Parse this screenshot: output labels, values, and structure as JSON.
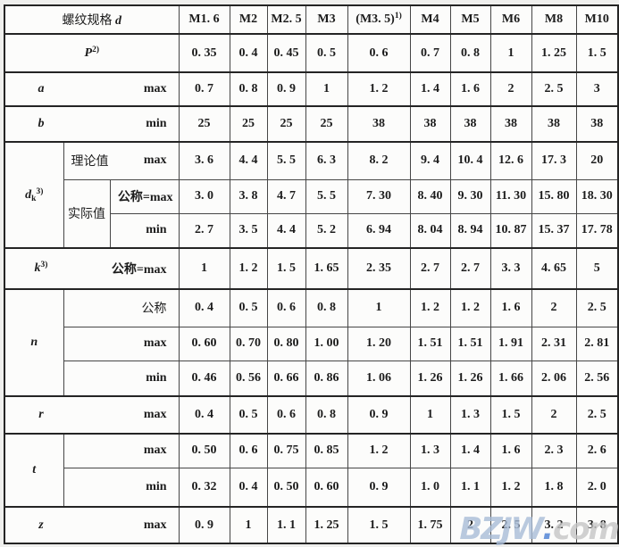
{
  "header": {
    "title": "螺纹规格",
    "title_symbol": "d",
    "columns": [
      {
        "label": "M1. 6",
        "sup": ""
      },
      {
        "label": "M2",
        "sup": ""
      },
      {
        "label": "M2. 5",
        "sup": ""
      },
      {
        "label": "M3",
        "sup": ""
      },
      {
        "label": "(M3. 5)",
        "sup": "1)"
      },
      {
        "label": "M4",
        "sup": ""
      },
      {
        "label": "M5",
        "sup": ""
      },
      {
        "label": "M6",
        "sup": ""
      },
      {
        "label": "M8",
        "sup": ""
      },
      {
        "label": "M10",
        "sup": ""
      }
    ]
  },
  "sections": {
    "p": {
      "letter": "P",
      "sup": "2)",
      "values": [
        "0. 35",
        "0. 4",
        "0. 45",
        "0. 5",
        "0. 6",
        "0. 7",
        "0. 8",
        "1",
        "1. 25",
        "1. 5"
      ]
    },
    "a": {
      "letter": "a",
      "sublabel": "max",
      "values": [
        "0. 7",
        "0. 8",
        "0. 9",
        "1",
        "1. 2",
        "1. 4",
        "1. 6",
        "2",
        "2. 5",
        "3"
      ]
    },
    "b": {
      "letter": "b",
      "sublabel": "min",
      "values": [
        "25",
        "25",
        "25",
        "25",
        "38",
        "38",
        "38",
        "38",
        "38",
        "38"
      ]
    },
    "dk": {
      "letter": "d",
      "letter_sub": "k",
      "letter_sup": "3)",
      "rows": [
        {
          "group": "理论值",
          "sublabel": "max",
          "values": [
            "3. 6",
            "4. 4",
            "5. 5",
            "6. 3",
            "8. 2",
            "9. 4",
            "10. 4",
            "12. 6",
            "17. 3",
            "20"
          ]
        },
        {
          "group": "实际值",
          "sublabel": "公称=max",
          "values": [
            "3. 0",
            "3. 8",
            "4. 7",
            "5. 5",
            "7. 30",
            "8. 40",
            "9. 30",
            "11. 30",
            "15. 80",
            "18. 30"
          ]
        },
        {
          "sublabel": "min",
          "values": [
            "2. 7",
            "3. 5",
            "4. 4",
            "5. 2",
            "6. 94",
            "8. 04",
            "8. 94",
            "10. 87",
            "15. 37",
            "17. 78"
          ]
        }
      ]
    },
    "k": {
      "letter": "k",
      "sup": "3)",
      "sublabel": "公称=max",
      "values": [
        "1",
        "1. 2",
        "1. 5",
        "1. 65",
        "2. 35",
        "2. 7",
        "2. 7",
        "3. 3",
        "4. 65",
        "5"
      ]
    },
    "n": {
      "letter": "n",
      "rows": [
        {
          "sublabel": "公称",
          "values": [
            "0. 4",
            "0. 5",
            "0. 6",
            "0. 8",
            "1",
            "1. 2",
            "1. 2",
            "1. 6",
            "2",
            "2. 5"
          ]
        },
        {
          "sublabel": "max",
          "values": [
            "0. 60",
            "0. 70",
            "0. 80",
            "1. 00",
            "1. 20",
            "1. 51",
            "1. 51",
            "1. 91",
            "2. 31",
            "2. 81"
          ]
        },
        {
          "sublabel": "min",
          "values": [
            "0. 46",
            "0. 56",
            "0. 66",
            "0. 86",
            "1. 06",
            "1. 26",
            "1. 26",
            "1. 66",
            "2. 06",
            "2. 56"
          ]
        }
      ]
    },
    "r": {
      "letter": "r",
      "sublabel": "max",
      "values": [
        "0. 4",
        "0. 5",
        "0. 6",
        "0. 8",
        "0. 9",
        "1",
        "1. 3",
        "1. 5",
        "2",
        "2. 5"
      ]
    },
    "t": {
      "letter": "t",
      "rows": [
        {
          "sublabel": "max",
          "values": [
            "0. 50",
            "0. 6",
            "0. 75",
            "0. 85",
            "1. 2",
            "1. 3",
            "1. 4",
            "1. 6",
            "2. 3",
            "2. 6"
          ]
        },
        {
          "sublabel": "min",
          "values": [
            "0. 32",
            "0. 4",
            "0. 50",
            "0. 60",
            "0. 9",
            "1. 0",
            "1. 1",
            "1. 2",
            "1. 8",
            "2. 0"
          ]
        }
      ]
    },
    "z": {
      "letter": "z",
      "sublabel": "max",
      "values": [
        "0. 9",
        "1",
        "1. 1",
        "1. 25",
        "1. 5",
        "1. 75",
        "2",
        "2. 5",
        "3. 2",
        "3. 8"
      ]
    }
  },
  "watermark": {
    "main": "BZJW",
    "dot": ".",
    "domain": "com",
    "main_color": "#a9bdd8",
    "dot_color": "#4a7fd4",
    "domain_color": "#c6c6c6"
  }
}
